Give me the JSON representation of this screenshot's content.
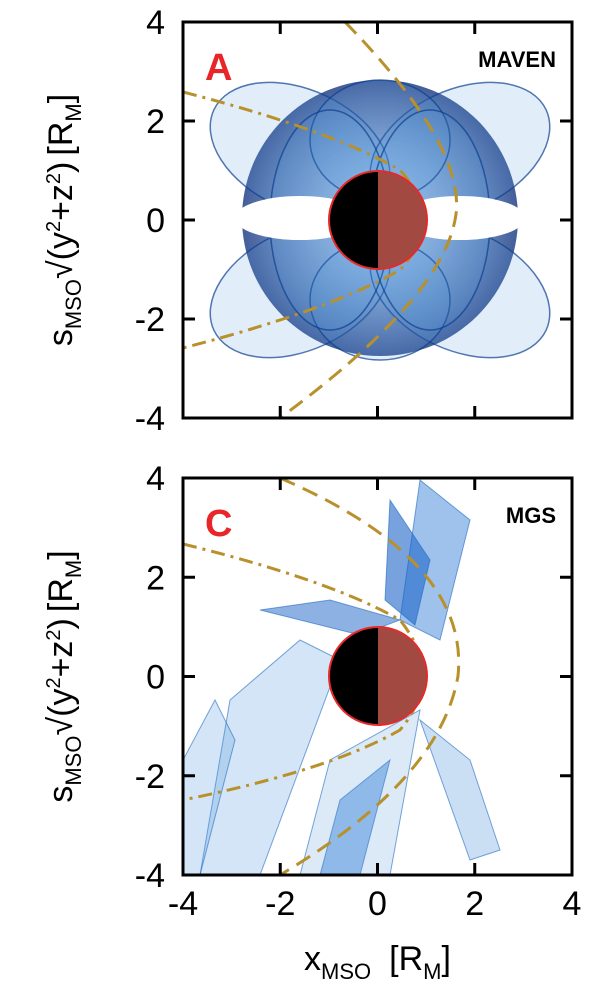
{
  "chart_data": [
    {
      "type": "coverage",
      "panel": "A",
      "spacecraft": "MAVEN",
      "xlim": [
        -4,
        4
      ],
      "ylim": [
        -4,
        4
      ],
      "xticks": [
        -4,
        -2,
        0,
        2,
        4
      ],
      "yticks": [
        -4,
        -2,
        0,
        2,
        4
      ],
      "ylabel": [
        "s",
        "MSO",
        "√(y",
        "2",
        "+z",
        "2",
        ")",
        "[R",
        "M",
        "]"
      ]
    },
    {
      "type": "coverage",
      "panel": "C",
      "spacecraft": "MGS",
      "xlim": [
        -4,
        4
      ],
      "ylim": [
        -4,
        4
      ],
      "xticks": [
        -4,
        -2,
        0,
        2,
        4
      ],
      "yticks": [
        -4,
        -2,
        0,
        2,
        4
      ],
      "ylabel": [
        "s",
        "MSO",
        "√(y",
        "2",
        "+z",
        "2",
        ")",
        "[R",
        "M",
        "]"
      ],
      "xlabel": [
        "x",
        "MSO",
        "[R",
        "M",
        "]"
      ]
    }
  ]
}
